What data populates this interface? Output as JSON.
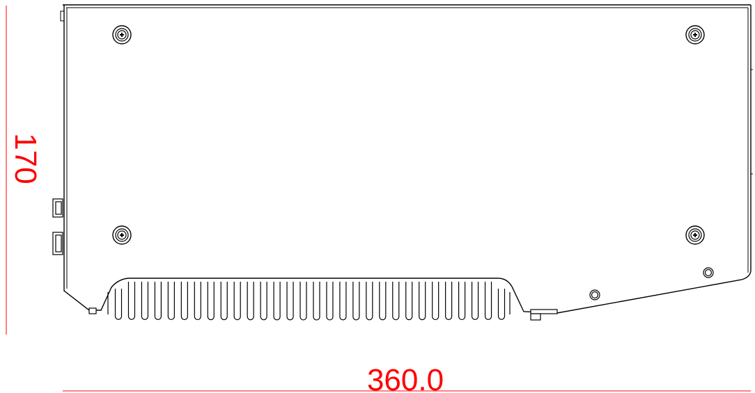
{
  "dimensions": {
    "height_label": "170",
    "width_label": "360.0",
    "color": "#ff0000"
  },
  "drawing": {
    "line_color": "#000000",
    "background": "#ffffff"
  }
}
